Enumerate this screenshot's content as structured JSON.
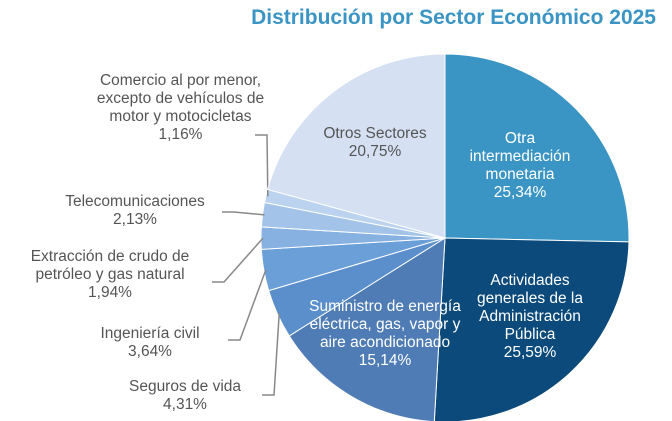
{
  "chart_data": {
    "type": "pie",
    "title": "Distribución por Sector Económico 2025",
    "categories": [
      "Otra intermediación monetaria",
      "Actividades generales de la Administración Pública",
      "Suministro de energía eléctrica, gas, vapor y aire acondicionado",
      "Seguros de vida",
      "Ingeniería civil",
      "Extracción de crudo de petróleo y gas natural",
      "Telecomunicaciones",
      "Comercio al por menor, excepto de vehículos de motor y motocicletas",
      "Otros Sectores"
    ],
    "values": [
      25.34,
      25.59,
      15.14,
      4.31,
      3.64,
      1.94,
      2.13,
      1.16,
      20.75
    ],
    "value_labels": [
      "25,34%",
      "25,59%",
      "15,14%",
      "4,31%",
      "3,64%",
      "1,94%",
      "2,13%",
      "1,16%",
      "20,75%"
    ],
    "colors": [
      "#3a95c4",
      "#0b4a7a",
      "#4f7cb5",
      "#5b8fcc",
      "#6a9fd8",
      "#86b1e0",
      "#a3c3e8",
      "#bcd3ef",
      "#d5e1f3"
    ]
  }
}
